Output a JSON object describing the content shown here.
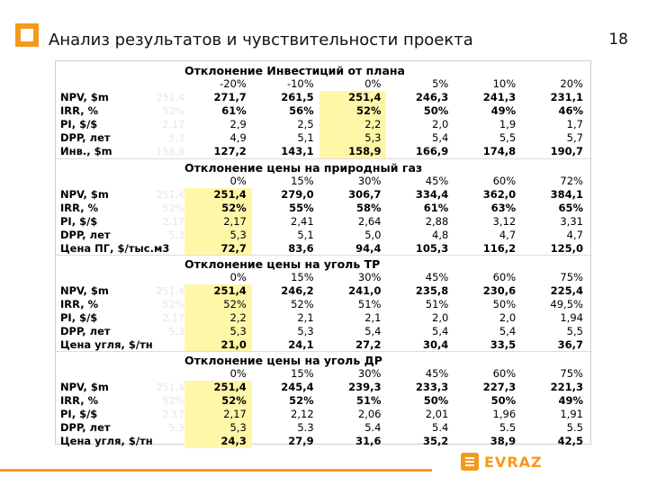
{
  "header": {
    "title": "Анализ результатов и чувствительности проекта",
    "page_number": "18"
  },
  "brand": {
    "name": "EVRAZ",
    "accent": "#f39a1d"
  },
  "table": {
    "highlight_color": "#fff7a8",
    "sections": [
      {
        "title": "Отклонение Инвестиций от плана",
        "columns": [
          "-20%",
          "-10%",
          "0%",
          "5%",
          "10%",
          "20%"
        ],
        "highlight_col": 2,
        "rows": [
          {
            "label": "NPV, $m",
            "faint": "251,4",
            "values": [
              "271,7",
              "261,5",
              "251,4",
              "246,3",
              "241,3",
              "231,1"
            ],
            "bold": true
          },
          {
            "label": "IRR, %",
            "faint": "52%",
            "values": [
              "61%",
              "56%",
              "52%",
              "50%",
              "49%",
              "46%"
            ],
            "bold": true
          },
          {
            "label": "PI, $/$",
            "faint": "2,17",
            "values": [
              "2,9",
              "2,5",
              "2,2",
              "2,0",
              "1,9",
              "1,7"
            ],
            "bold": false
          },
          {
            "label": "DPP, лет",
            "faint": "5,3",
            "values": [
              "4,9",
              "5,1",
              "5,3",
              "5,4",
              "5,5",
              "5,7"
            ],
            "bold": false
          },
          {
            "label": "Инв., $m",
            "faint": "158,9",
            "values": [
              "127,2",
              "143,1",
              "158,9",
              "166,9",
              "174,8",
              "190,7"
            ],
            "bold": true
          }
        ]
      },
      {
        "title": "Отклонение цены на природный газ",
        "faint_title": "0%",
        "columns": [
          "0%",
          "15%",
          "30%",
          "45%",
          "60%",
          "72%"
        ],
        "highlight_col": 0,
        "rows": [
          {
            "label": "NPV, $m",
            "faint": "251,4",
            "values": [
              "251,4",
              "279,0",
              "306,7",
              "334,4",
              "362,0",
              "384,1"
            ],
            "bold": true
          },
          {
            "label": "IRR, %",
            "faint": "52%",
            "values": [
              "52%",
              "55%",
              "58%",
              "61%",
              "63%",
              "65%"
            ],
            "bold": true
          },
          {
            "label": "PI, $/$",
            "faint": "2,17",
            "values": [
              "2,17",
              "2,41",
              "2,64",
              "2,88",
              "3,12",
              "3,31"
            ],
            "bold": false
          },
          {
            "label": "DPP, лет",
            "faint": "5,3",
            "values": [
              "5,3",
              "5,1",
              "5,0",
              "4,8",
              "4,7",
              "4,7"
            ],
            "bold": false
          },
          {
            "label": "Цена ПГ, $/тыс.м3",
            "faint": "",
            "values": [
              "72,7",
              "83,6",
              "94,4",
              "105,3",
              "116,2",
              "125,0"
            ],
            "bold": true
          }
        ]
      },
      {
        "title": "Отклонение цены на уголь  ТР",
        "faint_title": "0%",
        "columns": [
          "0%",
          "15%",
          "30%",
          "45%",
          "60%",
          "75%"
        ],
        "highlight_col": 0,
        "rows": [
          {
            "label": "NPV, $m",
            "faint": "251,4",
            "values": [
              "251,4",
              "246,2",
              "241,0",
              "235,8",
              "230,6",
              "225,4"
            ],
            "bold": true
          },
          {
            "label": "IRR, %",
            "faint": "52%",
            "values": [
              "52%",
              "52%",
              "51%",
              "51%",
              "50%",
              "49,5%"
            ],
            "bold": false
          },
          {
            "label": "PI, $/$",
            "faint": "2,17",
            "values": [
              "2,2",
              "2,1",
              "2,1",
              "2,0",
              "2,0",
              "1,94"
            ],
            "bold": false
          },
          {
            "label": "DPP, лет",
            "faint": "5,3",
            "values": [
              "5,3",
              "5,3",
              "5,4",
              "5,4",
              "5,4",
              "5,5"
            ],
            "bold": false
          },
          {
            "label": "Цена угля, $/тн",
            "faint": "",
            "values": [
              "21,0",
              "24,1",
              "27,2",
              "30,4",
              "33,5",
              "36,7"
            ],
            "bold": true
          }
        ]
      },
      {
        "title": "Отклонение цены на уголь  ДР",
        "faint_title": "0%",
        "columns": [
          "0%",
          "15%",
          "30%",
          "45%",
          "60%",
          "75%"
        ],
        "highlight_col": 0,
        "rows": [
          {
            "label": "NPV, $m",
            "faint": "251,4",
            "values": [
              "251,4",
              "245,4",
              "239,3",
              "233,3",
              "227,3",
              "221,3"
            ],
            "bold": true
          },
          {
            "label": "IRR, %",
            "faint": "52%",
            "values": [
              "52%",
              "52%",
              "51%",
              "50%",
              "50%",
              "49%"
            ],
            "bold": true
          },
          {
            "label": "PI, $/$",
            "faint": "2,17",
            "values": [
              "2,17",
              "2,12",
              "2,06",
              "2,01",
              "1,96",
              "1,91"
            ],
            "bold": false
          },
          {
            "label": "DPP, лет",
            "faint": "5,3",
            "values": [
              "5,3",
              "5.3",
              "5.4",
              "5.4",
              "5.5",
              "5.5"
            ],
            "bold": false
          },
          {
            "label": "Цена угля, $/тн",
            "faint": "",
            "values": [
              "24,3",
              "27,9",
              "31,6",
              "35,2",
              "38,9",
              "42,5"
            ],
            "bold": true
          }
        ]
      }
    ]
  }
}
